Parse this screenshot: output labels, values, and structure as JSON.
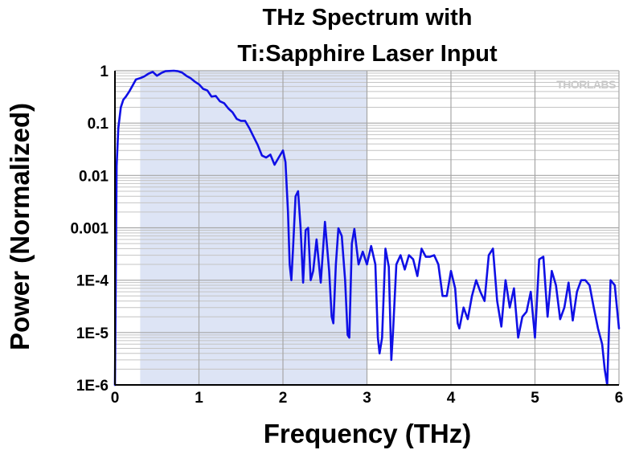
{
  "chart_data": {
    "type": "line",
    "title": [
      "THz Spectrum with",
      "Ti:Sapphire Laser Input"
    ],
    "xlabel": "Frequency (THz)",
    "ylabel": "Power (Normalized)",
    "xlim": [
      0,
      6
    ],
    "ylim": [
      1e-06,
      1
    ],
    "y_scale": "log",
    "grid": true,
    "watermark": "THORLABS",
    "x_ticks": [
      "0",
      "1",
      "2",
      "3",
      "4",
      "5",
      "6"
    ],
    "y_ticks": [
      "1E-6",
      "1E-5",
      "1E-4",
      "0.001",
      "0.01",
      "0.1",
      "1"
    ],
    "highlight_band": {
      "x": [
        0.3,
        3.0
      ],
      "color": "#dde4f5"
    },
    "series": [
      {
        "color": "#1010e6",
        "x": [
          0.0,
          0.02,
          0.04,
          0.07,
          0.1,
          0.13,
          0.17,
          0.21,
          0.25,
          0.3,
          0.35,
          0.4,
          0.45,
          0.5,
          0.55,
          0.6,
          0.65,
          0.7,
          0.75,
          0.8,
          0.85,
          0.9,
          0.95,
          1.0,
          1.05,
          1.1,
          1.15,
          1.2,
          1.25,
          1.3,
          1.35,
          1.4,
          1.45,
          1.5,
          1.55,
          1.6,
          1.65,
          1.7,
          1.75,
          1.8,
          1.85,
          1.9,
          1.95,
          2.0,
          2.03,
          2.06,
          2.08,
          2.1,
          2.12,
          2.15,
          2.18,
          2.21,
          2.24,
          2.27,
          2.3,
          2.33,
          2.36,
          2.4,
          2.45,
          2.5,
          2.55,
          2.58,
          2.6,
          2.63,
          2.66,
          2.7,
          2.74,
          2.77,
          2.79,
          2.82,
          2.85,
          2.9,
          2.95,
          3.0,
          3.05,
          3.1,
          3.13,
          3.15,
          3.18,
          3.22,
          3.26,
          3.29,
          3.31,
          3.35,
          3.4,
          3.45,
          3.5,
          3.55,
          3.6,
          3.65,
          3.7,
          3.75,
          3.8,
          3.85,
          3.9,
          3.95,
          4.0,
          4.05,
          4.08,
          4.1,
          4.15,
          4.2,
          4.25,
          4.3,
          4.35,
          4.4,
          4.45,
          4.5,
          4.55,
          4.6,
          4.65,
          4.7,
          4.75,
          4.8,
          4.85,
          4.9,
          4.95,
          5.0,
          5.05,
          5.1,
          5.15,
          5.2,
          5.25,
          5.3,
          5.35,
          5.4,
          5.45,
          5.5,
          5.55,
          5.6,
          5.65,
          5.7,
          5.75,
          5.8,
          5.83,
          5.86,
          5.9,
          5.95,
          6.0
        ],
        "y": [
          1e-06,
          0.015,
          0.08,
          0.2,
          0.28,
          0.32,
          0.4,
          0.52,
          0.68,
          0.72,
          0.78,
          0.88,
          0.95,
          0.8,
          0.9,
          0.98,
          0.99,
          1.0,
          0.98,
          0.92,
          0.8,
          0.72,
          0.62,
          0.55,
          0.45,
          0.42,
          0.32,
          0.33,
          0.26,
          0.24,
          0.19,
          0.16,
          0.12,
          0.11,
          0.11,
          0.08,
          0.055,
          0.038,
          0.024,
          0.022,
          0.025,
          0.016,
          0.022,
          0.03,
          0.018,
          0.002,
          0.0002,
          0.0001,
          0.0004,
          0.004,
          0.005,
          0.001,
          9e-05,
          0.0009,
          0.001,
          0.0001,
          0.00015,
          0.0006,
          9e-05,
          0.0013,
          0.00015,
          2e-05,
          1.5e-05,
          0.0002,
          0.00098,
          0.0007,
          0.0001,
          9e-06,
          8e-06,
          0.0005,
          0.00095,
          0.0002,
          0.00035,
          0.0002,
          0.00045,
          0.0002,
          8e-06,
          4e-06,
          8e-06,
          0.0004,
          0.00018,
          3e-06,
          1e-05,
          0.0002,
          0.0003,
          0.00016,
          0.0003,
          0.00025,
          0.00012,
          0.0004,
          0.00028,
          0.00028,
          0.0003,
          0.0002,
          5e-05,
          5e-05,
          0.00015,
          7e-05,
          1.5e-05,
          1.2e-05,
          3e-05,
          1.8e-05,
          5e-05,
          0.0001,
          6e-05,
          4e-05,
          0.0003,
          0.0004,
          4e-05,
          1.3e-05,
          0.0001,
          3e-05,
          7e-05,
          8e-06,
          2e-05,
          2.5e-05,
          6e-05,
          8e-06,
          0.00025,
          0.00028,
          2e-05,
          0.00015,
          8e-05,
          1.8e-05,
          3e-05,
          9e-05,
          1.7e-05,
          6e-05,
          0.0001,
          0.0001,
          8e-05,
          3e-05,
          1.2e-05,
          6e-06,
          2e-06,
          1e-06,
          0.0001,
          8e-05,
          1.2e-05
        ]
      }
    ]
  }
}
